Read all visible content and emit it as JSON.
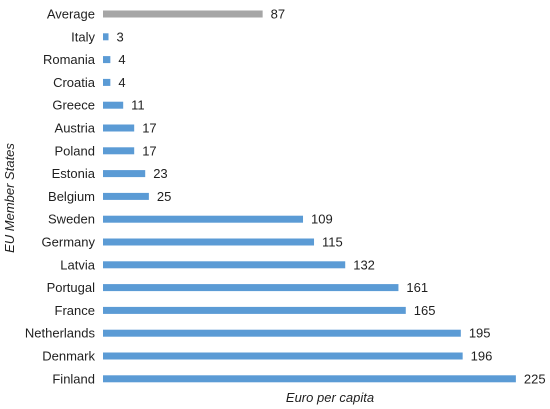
{
  "chart_data": {
    "type": "bar",
    "orientation": "horizontal",
    "title": "",
    "xlabel": "Euro per capita",
    "ylabel": "EU Member States",
    "xlim": [
      0,
      225
    ],
    "grid": false,
    "categories": [
      "Average",
      "Italy",
      "Romania",
      "Croatia",
      "Greece",
      "Austria",
      "Poland",
      "Estonia",
      "Belgium",
      "Sweden",
      "Germany",
      "Latvia",
      "Portugal",
      "France",
      "Netherlands",
      "Denmark",
      "Finland"
    ],
    "values": [
      87,
      3,
      4,
      4,
      11,
      17,
      17,
      23,
      25,
      109,
      115,
      132,
      161,
      165,
      195,
      196,
      225
    ],
    "bar_colors": [
      "#a6a6a6",
      "#5b9bd5",
      "#5b9bd5",
      "#5b9bd5",
      "#5b9bd5",
      "#5b9bd5",
      "#5b9bd5",
      "#5b9bd5",
      "#5b9bd5",
      "#5b9bd5",
      "#5b9bd5",
      "#5b9bd5",
      "#5b9bd5",
      "#5b9bd5",
      "#5b9bd5",
      "#5b9bd5",
      "#5b9bd5"
    ]
  }
}
